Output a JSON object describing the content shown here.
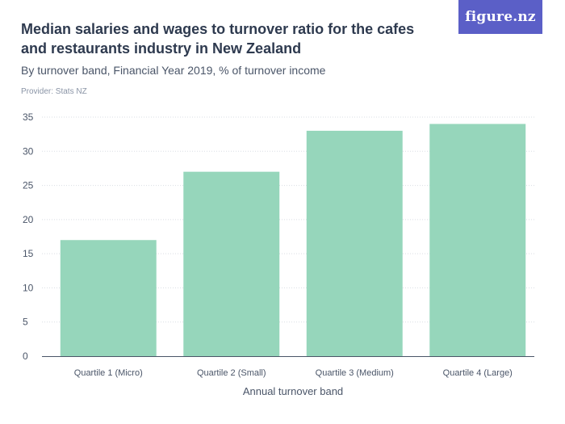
{
  "header": {
    "title": "Median salaries and wages to turnover ratio for the cafes and restaurants industry in New Zealand",
    "subtitle": "By turnover band, Financial Year 2019, % of turnover income",
    "provider": "Provider: Stats NZ",
    "logo": "figure.nz"
  },
  "colors": {
    "bar": "#96d6bb",
    "logo_bg": "#5b5fc7"
  },
  "chart_data": {
    "type": "bar",
    "categories": [
      "Quartile 1 (Micro)",
      "Quartile 2 (Small)",
      "Quartile 3 (Medium)",
      "Quartile 4 (Large)"
    ],
    "values": [
      17,
      27,
      33,
      34
    ],
    "xlabel": "Annual turnover band",
    "ylabel": "",
    "ylim": [
      0,
      35
    ],
    "yticks": [
      0,
      5,
      10,
      15,
      20,
      25,
      30,
      35
    ],
    "grid": true,
    "legend": "none"
  }
}
